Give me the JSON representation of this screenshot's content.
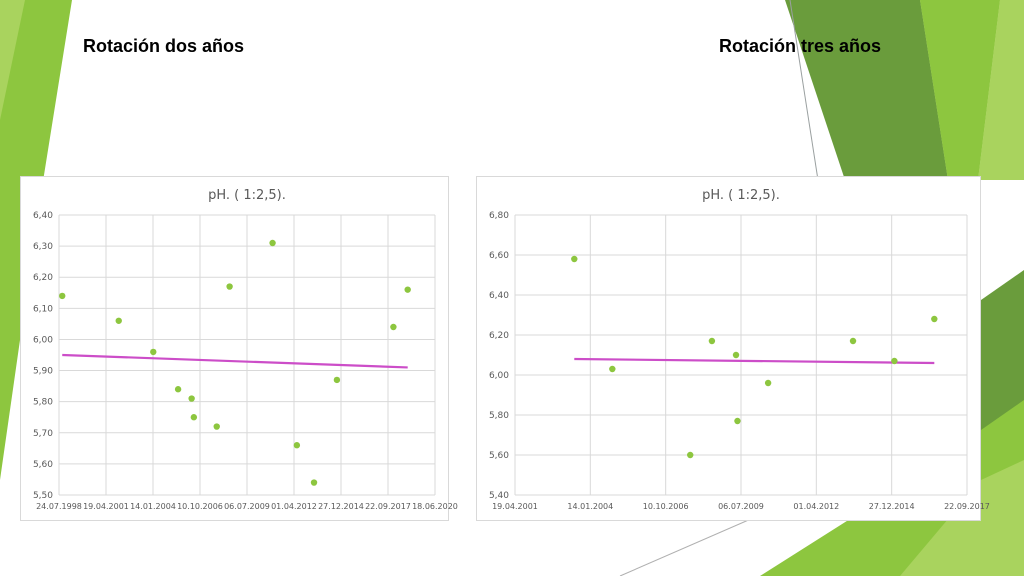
{
  "slide": {
    "title_left": "Rotación dos años",
    "title_right": "Rotación tres años",
    "accent_green": "#8dc63f",
    "dark_green": "#5b8f2a"
  },
  "chart_data": [
    {
      "type": "scatter",
      "title": "pH. ( 1:2,5).",
      "xlabel": "",
      "ylabel": "",
      "x_ticks": [
        "24.07.1998",
        "19.04.2001",
        "14.01.2004",
        "10.10.2006",
        "06.07.2009",
        "01.04.2012",
        "27.12.2014",
        "22.09.2017",
        "18.06.2020"
      ],
      "xlim": [
        "1998-07-24",
        "2020-06-18"
      ],
      "ylim": [
        5.5,
        6.4
      ],
      "y_ticks": [
        "5,50",
        "5,60",
        "5,70",
        "5,80",
        "5,90",
        "6,00",
        "6,10",
        "6,20",
        "6,30",
        "6,40"
      ],
      "grid": true,
      "legend": "none",
      "point_color": "#8dc63f",
      "trendline_color": "#cc4dc8",
      "points": [
        {
          "x": "1998-10-01",
          "y": 6.14
        },
        {
          "x": "2002-01-15",
          "y": 6.06
        },
        {
          "x": "2004-01-20",
          "y": 5.96
        },
        {
          "x": "2005-07-01",
          "y": 5.84
        },
        {
          "x": "2006-04-15",
          "y": 5.81
        },
        {
          "x": "2006-06-01",
          "y": 5.75
        },
        {
          "x": "2007-10-01",
          "y": 5.72
        },
        {
          "x": "2008-07-01",
          "y": 6.17
        },
        {
          "x": "2011-01-01",
          "y": 6.31
        },
        {
          "x": "2012-06-01",
          "y": 5.66
        },
        {
          "x": "2013-06-01",
          "y": 5.54
        },
        {
          "x": "2014-10-01",
          "y": 5.87
        },
        {
          "x": "2018-01-15",
          "y": 6.04
        },
        {
          "x": "2018-11-15",
          "y": 6.16
        }
      ],
      "trendline": [
        {
          "x": "1998-10-01",
          "y": 5.95
        },
        {
          "x": "2018-11-15",
          "y": 5.91
        }
      ]
    },
    {
      "type": "scatter",
      "title": "pH. ( 1:2,5).",
      "xlabel": "",
      "ylabel": "",
      "x_ticks": [
        "19.04.2001",
        "14.01.2004",
        "10.10.2006",
        "06.07.2009",
        "01.04.2012",
        "27.12.2014",
        "22.09.2017"
      ],
      "xlim": [
        "2001-04-19",
        "2017-09-22"
      ],
      "ylim": [
        5.4,
        6.8
      ],
      "y_ticks": [
        "5,40",
        "5,60",
        "5,80",
        "6,00",
        "6,20",
        "6,40",
        "6,60",
        "6,80"
      ],
      "grid": true,
      "legend": "none",
      "point_color": "#8dc63f",
      "trendline_color": "#cc4dc8",
      "points": [
        {
          "x": "2003-06-15",
          "y": 6.58
        },
        {
          "x": "2004-11-01",
          "y": 6.03
        },
        {
          "x": "2007-09-01",
          "y": 5.6
        },
        {
          "x": "2008-06-15",
          "y": 6.17
        },
        {
          "x": "2009-05-01",
          "y": 6.1
        },
        {
          "x": "2009-05-20",
          "y": 5.77
        },
        {
          "x": "2010-07-01",
          "y": 5.96
        },
        {
          "x": "2013-08-01",
          "y": 6.17
        },
        {
          "x": "2015-02-01",
          "y": 6.07
        },
        {
          "x": "2016-07-15",
          "y": 6.28
        }
      ],
      "trendline": [
        {
          "x": "2003-06-15",
          "y": 6.08
        },
        {
          "x": "2016-07-15",
          "y": 6.06
        }
      ]
    }
  ]
}
